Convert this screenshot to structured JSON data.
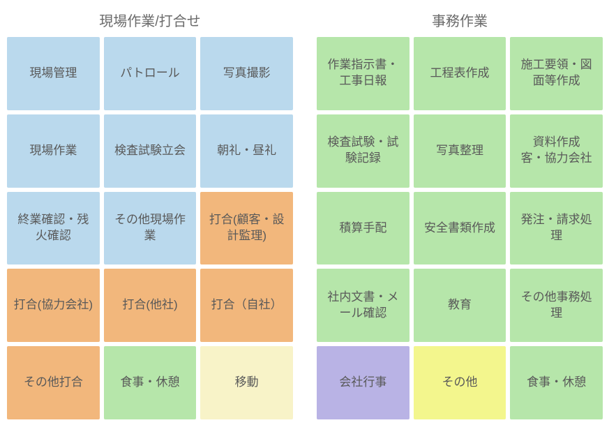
{
  "colors": {
    "blue": "#bad9ed",
    "orange": "#f2b77c",
    "green": "#b6e6aa",
    "beige": "#f8f3c8",
    "purple": "#b9b3e5",
    "yellow": "#f3f68d",
    "title": "#6b6b6b",
    "text": "#595959",
    "bg": "#ffffff"
  },
  "left": {
    "title": "現場作業/打合せ",
    "cells": [
      {
        "label": "現場管理",
        "color": "blue"
      },
      {
        "label": "パトロール",
        "color": "blue"
      },
      {
        "label": "写真撮影",
        "color": "blue"
      },
      {
        "label": "現場作業",
        "color": "blue"
      },
      {
        "label": "検査試験立会",
        "color": "blue"
      },
      {
        "label": "朝礼・昼礼",
        "color": "blue"
      },
      {
        "label": "終業確認・残火確認",
        "color": "blue"
      },
      {
        "label": "その他現場作業",
        "color": "blue"
      },
      {
        "label": "打合(顧客・設計監理)",
        "color": "orange"
      },
      {
        "label": "打合(協力会社)",
        "color": "orange"
      },
      {
        "label": "打合(他社)",
        "color": "orange"
      },
      {
        "label": "打合（自社）",
        "color": "orange"
      },
      {
        "label": "その他打合",
        "color": "orange"
      },
      {
        "label": "食事・休憩",
        "color": "green"
      },
      {
        "label": "移動",
        "color": "beige"
      }
    ]
  },
  "right": {
    "title": "事務作業",
    "cells": [
      {
        "label": "作業指示書・工事日報",
        "color": "green"
      },
      {
        "label": "工程表作成",
        "color": "green"
      },
      {
        "label": "施工要領・図面等作成",
        "color": "green"
      },
      {
        "label": "検査試験・試験記録",
        "color": "green"
      },
      {
        "label": "写真整理",
        "color": "green"
      },
      {
        "label": "資料作成\n客・協力会社",
        "color": "green"
      },
      {
        "label": "積算手配",
        "color": "green"
      },
      {
        "label": "安全書類作成",
        "color": "green"
      },
      {
        "label": "発注・請求処理",
        "color": "green"
      },
      {
        "label": "社内文書・メール確認",
        "color": "green"
      },
      {
        "label": "教育",
        "color": "green"
      },
      {
        "label": "その他事務処理",
        "color": "green"
      },
      {
        "label": "会社行事",
        "color": "purple"
      },
      {
        "label": "その他",
        "color": "yellow"
      },
      {
        "label": "食事・休憩",
        "color": "green"
      }
    ]
  }
}
